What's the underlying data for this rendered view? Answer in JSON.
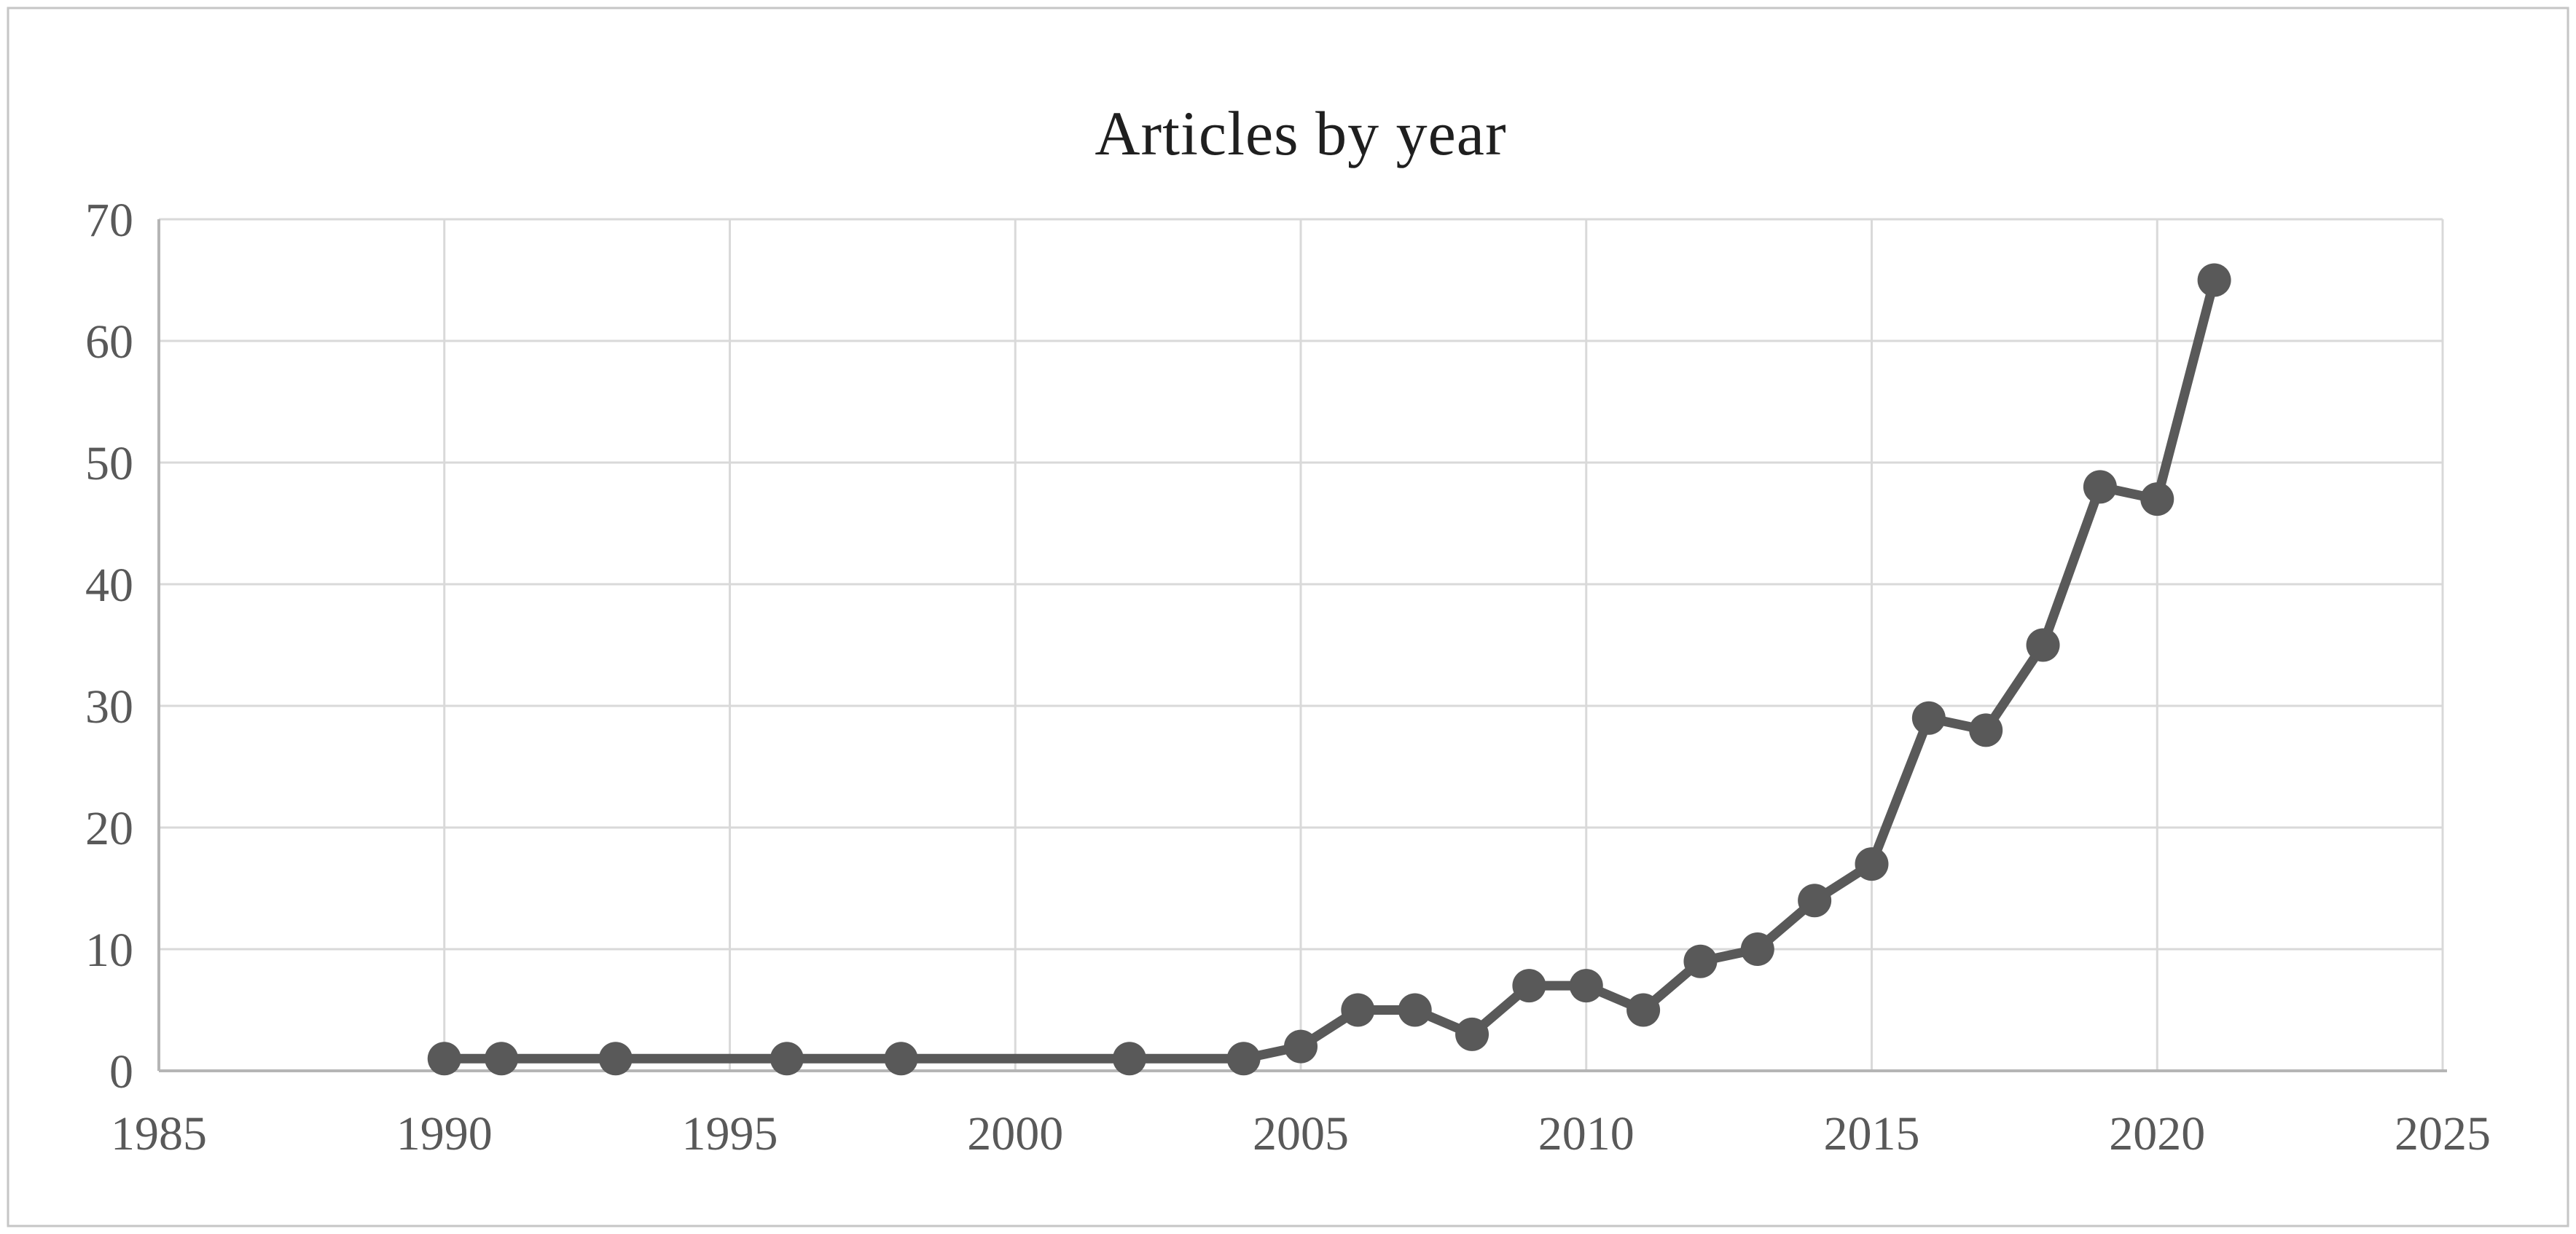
{
  "chart_data": {
    "type": "line",
    "title": "Articles by year",
    "x": [
      1990,
      1991,
      1993,
      1996,
      1998,
      2002,
      2004,
      2005,
      2006,
      2007,
      2008,
      2009,
      2010,
      2011,
      2012,
      2013,
      2014,
      2015,
      2016,
      2017,
      2018,
      2019,
      2020,
      2021
    ],
    "values": [
      1,
      1,
      1,
      1,
      1,
      1,
      1,
      2,
      5,
      5,
      3,
      7,
      7,
      5,
      9,
      10,
      14,
      17,
      29,
      28,
      35,
      48,
      47,
      65
    ],
    "xlabel": "",
    "ylabel": "",
    "xlim": [
      1985,
      2025
    ],
    "ylim": [
      0,
      70
    ],
    "x_ticks": [
      1985,
      1990,
      1995,
      2000,
      2005,
      2010,
      2015,
      2020,
      2025
    ],
    "y_ticks": [
      0,
      10,
      20,
      30,
      40,
      50,
      60,
      70
    ],
    "grid": true,
    "legend": "none",
    "marker": "circle",
    "style": {
      "line_color": "#595959",
      "marker_color": "#595959",
      "gridline_color": "#d9d9d9",
      "axis_line_color": "#b5b5b5",
      "tick_label_color": "#595959",
      "title_color": "#1f1f1f",
      "border_color": "#c6c6c6",
      "background": "#ffffff"
    }
  }
}
